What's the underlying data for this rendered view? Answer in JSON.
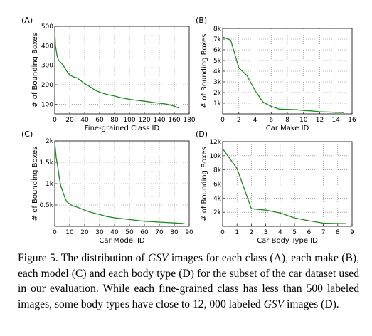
{
  "chart_data": [
    {
      "type": "line",
      "panel": "(A)",
      "xlabel": "Fine-grained Class ID",
      "ylabel": "# of Bounding Boxes",
      "xlim": [
        0,
        180
      ],
      "ylim": [
        50,
        500
      ],
      "xticks": [
        "0",
        "20",
        "40",
        "60",
        "80",
        "100",
        "120",
        "140",
        "160",
        "180"
      ],
      "yticks": [
        "100",
        "200",
        "300",
        "400",
        "500"
      ],
      "x": [
        0,
        1,
        3,
        5,
        8,
        12,
        16,
        20,
        25,
        30,
        35,
        40,
        45,
        50,
        55,
        60,
        70,
        80,
        90,
        100,
        110,
        120,
        130,
        140,
        150,
        160,
        166
      ],
      "y": [
        480,
        400,
        350,
        325,
        315,
        295,
        270,
        250,
        240,
        235,
        220,
        205,
        195,
        182,
        170,
        162,
        150,
        142,
        132,
        125,
        120,
        115,
        110,
        105,
        100,
        90,
        80
      ]
    },
    {
      "type": "line",
      "panel": "(B)",
      "xlabel": "Car Make ID",
      "ylabel": "# of Bounding Boxes",
      "xlim": [
        0,
        16
      ],
      "ylim": [
        0,
        8000
      ],
      "xticks": [
        "0",
        "2",
        "4",
        "6",
        "8",
        "10",
        "12",
        "14",
        "16"
      ],
      "yticks": [
        "1k",
        "2k",
        "3k",
        "4k",
        "5k",
        "6k",
        "7k",
        "8k"
      ],
      "x": [
        0,
        1,
        2,
        3,
        4,
        5,
        6,
        7,
        8,
        9,
        10,
        11,
        12,
        13,
        14,
        15
      ],
      "y": [
        7200,
        6900,
        4300,
        3600,
        2200,
        1100,
        700,
        450,
        420,
        400,
        320,
        280,
        200,
        170,
        150,
        130
      ]
    },
    {
      "type": "line",
      "panel": "(C)",
      "xlabel": "Car Model ID",
      "ylabel": "# of Bounding Boxes",
      "xlim": [
        0,
        90
      ],
      "ylim": [
        0,
        2000
      ],
      "xticks": [
        "0",
        "10",
        "20",
        "30",
        "40",
        "50",
        "60",
        "70",
        "80",
        "90"
      ],
      "yticks": [
        "0.5k",
        "1k",
        "1.5k",
        "2k"
      ],
      "x": [
        0,
        1,
        2,
        3,
        4,
        5,
        6,
        7,
        8,
        10,
        12,
        15,
        20,
        25,
        30,
        35,
        40,
        45,
        50,
        55,
        60,
        65,
        70,
        75,
        80,
        85,
        87
      ],
      "y": [
        1950,
        1600,
        1400,
        1150,
        950,
        850,
        750,
        650,
        580,
        520,
        480,
        450,
        380,
        320,
        280,
        230,
        200,
        180,
        160,
        140,
        120,
        110,
        100,
        90,
        80,
        70,
        60
      ]
    },
    {
      "type": "line",
      "panel": "(D)",
      "xlabel": "Car Body Type ID",
      "ylabel": "# of Bounding Boxes",
      "xlim": [
        0,
        9
      ],
      "ylim": [
        0,
        12000
      ],
      "xticks": [
        "0",
        "1",
        "2",
        "3",
        "4",
        "5",
        "6",
        "7",
        "8",
        "9"
      ],
      "yticks": [
        "2k",
        "4k",
        "6k",
        "8k",
        "10k",
        "12k"
      ],
      "x": [
        0,
        1,
        2,
        3,
        4,
        5,
        6,
        7,
        8,
        8.6
      ],
      "y": [
        11000,
        8200,
        2500,
        2300,
        1900,
        1200,
        800,
        450,
        400,
        380
      ]
    }
  ],
  "caption": {
    "p1": "Figure 5. The distribution of ",
    "i1": "GSV",
    "p2": " images for each class (A), each make (B), each model (C) and each body type (D) for the subset of the car dataset used in our evaluation. While each fine-grained class has less than 500 labeled images, some body types have close to 12, 000 labeled ",
    "i2": "GSV",
    "p3": " images (D)."
  }
}
